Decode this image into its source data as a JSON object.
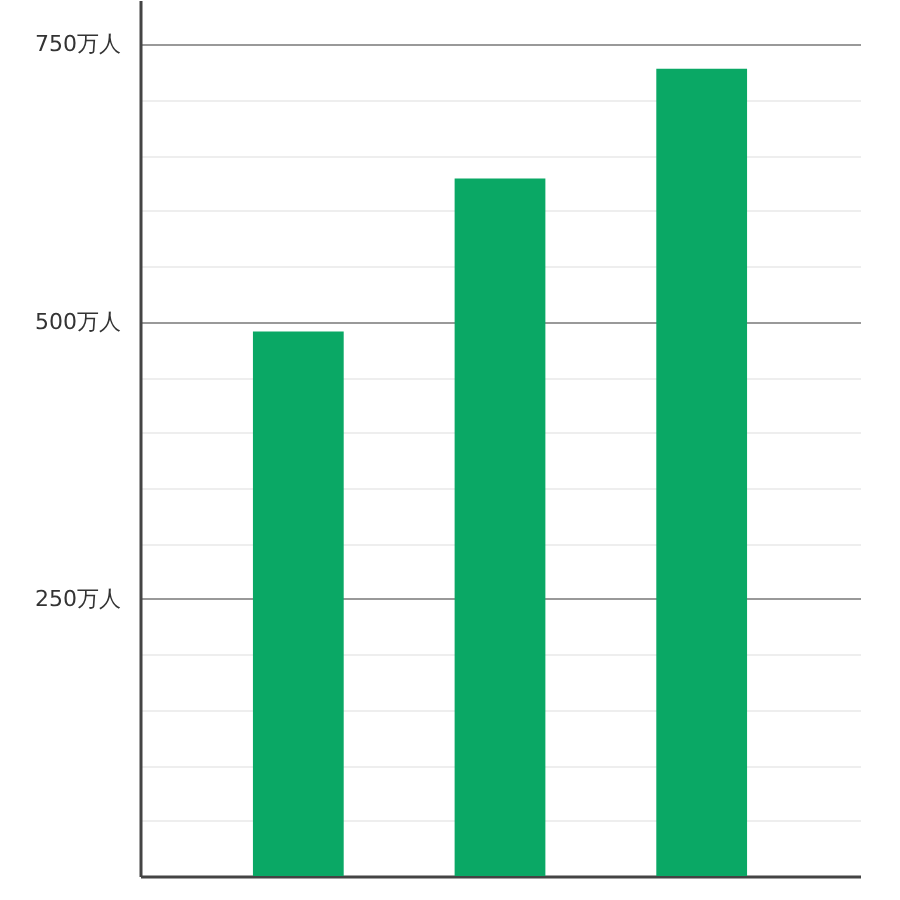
{
  "chart_data": {
    "type": "bar",
    "categories": [
      null,
      null,
      null
    ],
    "values": [
      491,
      629,
      728
    ],
    "color": "#0aa865",
    "ylim": [
      0,
      790
    ],
    "yticks": [
      {
        "value": 50,
        "label": null
      },
      {
        "value": 100,
        "label": null
      },
      {
        "value": 150,
        "label": null
      },
      {
        "value": 200,
        "label": null
      },
      {
        "value": 250,
        "label": "250万人"
      },
      {
        "value": 300,
        "label": null
      },
      {
        "value": 350,
        "label": null
      },
      {
        "value": 400,
        "label": null
      },
      {
        "value": 450,
        "label": null
      },
      {
        "value": 500,
        "label": "500万人"
      },
      {
        "value": 550,
        "label": null
      },
      {
        "value": 600,
        "label": null
      },
      {
        "value": 650,
        "label": null
      },
      {
        "value": 700,
        "label": null
      },
      {
        "value": 750,
        "label": "750万人"
      }
    ],
    "grid": "y",
    "tick_labels": "y"
  }
}
